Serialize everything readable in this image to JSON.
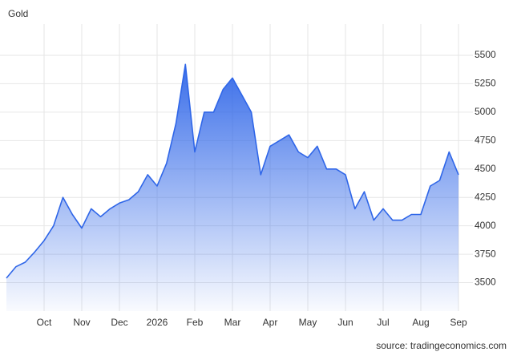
{
  "chart_data": {
    "type": "area",
    "title": "Gold",
    "source": "source: tradingeconomics.com",
    "categories": [
      null,
      null,
      null,
      null,
      "Oct",
      null,
      null,
      null,
      "Nov",
      null,
      null,
      null,
      "Dec",
      null,
      null,
      null,
      "2026",
      null,
      null,
      null,
      "Feb",
      null,
      null,
      null,
      "Mar",
      null,
      null,
      null,
      "Apr",
      null,
      null,
      null,
      "May",
      null,
      null,
      null,
      "Jun",
      null,
      null,
      null,
      "Jul",
      null,
      null,
      null,
      "Aug",
      null,
      null,
      null,
      "Sep"
    ],
    "values": [
      3540,
      3640,
      3680,
      3770,
      3870,
      4000,
      4250,
      4100,
      3980,
      4150,
      4080,
      4150,
      4200,
      4230,
      4300,
      4450,
      4350,
      4550,
      4900,
      5420,
      4650,
      5000,
      5000,
      5200,
      5300,
      5150,
      5000,
      4450,
      4700,
      4750,
      4800,
      4650,
      4600,
      4700,
      4500,
      4500,
      4450,
      4150,
      4300,
      4050,
      4150,
      4050,
      4050,
      4100,
      4100,
      4350,
      4400,
      4650,
      4450
    ],
    "color": "#2f66e8",
    "ylim": [
      3250,
      5775
    ],
    "yticks": [
      3500,
      3750,
      4000,
      4250,
      4500,
      4750,
      5000,
      5250,
      5500
    ],
    "grid": true
  }
}
